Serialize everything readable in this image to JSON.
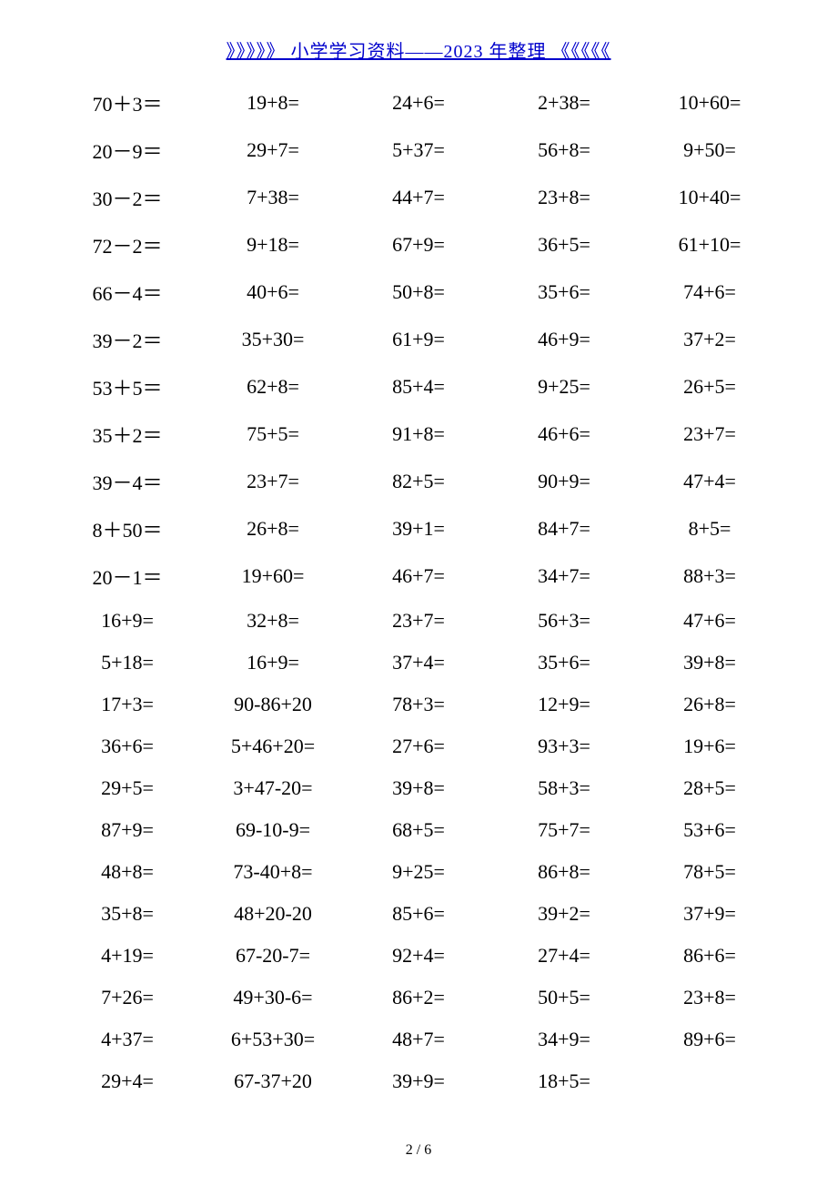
{
  "header": {
    "left_decor": "》》》》》",
    "link_text": "小学学习资料——2023 年整理",
    "right_decor": "《《《《《"
  },
  "table": {
    "columns": 5,
    "rows": [
      [
        "70＋3＝",
        "19+8=",
        "24+6=",
        "2+38=",
        "10+60="
      ],
      [
        "20－9＝",
        "29+7=",
        "5+37=",
        "56+8=",
        "9+50="
      ],
      [
        "30－2＝",
        "7+38=",
        "44+7=",
        "23+8=",
        "10+40="
      ],
      [
        "72－2＝",
        "9+18=",
        "67+9=",
        "36+5=",
        "61+10="
      ],
      [
        "66－4＝",
        "40+6=",
        "50+8=",
        "35+6=",
        "74+6="
      ],
      [
        "39－2＝",
        "35+30=",
        "61+9=",
        "46+9=",
        "37+2="
      ],
      [
        "53＋5＝",
        "62+8=",
        "85+4=",
        "9+25=",
        "26+5="
      ],
      [
        "35＋2＝",
        "75+5=",
        "91+8=",
        "46+6=",
        "23+7="
      ],
      [
        "39－4＝",
        "23+7=",
        "82+5=",
        "90+9=",
        "47+4="
      ],
      [
        "8＋50＝",
        "26+8=",
        "39+1=",
        "84+7=",
        "8+5="
      ],
      [
        "20－1＝",
        "19+60=",
        "46+7=",
        "34+7=",
        "88+3="
      ],
      [
        "16+9=",
        "32+8=",
        "23+7=",
        "56+3=",
        "47+6="
      ],
      [
        "5+18=",
        "16+9=",
        "37+4=",
        "35+6=",
        "39+8="
      ],
      [
        "17+3=",
        "90-86+20",
        "78+3=",
        "12+9=",
        "26+8="
      ],
      [
        "36+6=",
        "5+46+20=",
        "27+6=",
        "93+3=",
        "19+6="
      ],
      [
        "29+5=",
        "3+47-20=",
        "39+8=",
        "58+3=",
        "28+5="
      ],
      [
        "87+9=",
        "69-10-9=",
        "68+5=",
        "75+7=",
        "53+6="
      ],
      [
        "48+8=",
        "73-40+8=",
        "9+25=",
        "86+8=",
        "78+5="
      ],
      [
        "35+8=",
        "48+20-20",
        "85+6=",
        "39+2=",
        "37+9="
      ],
      [
        "4+19=",
        "67-20-7=",
        "92+4=",
        "27+4=",
        "86+6="
      ],
      [
        "7+26=",
        "49+30-6=",
        "86+2=",
        "50+5=",
        "23+8="
      ],
      [
        "4+37=",
        "6+53+30=",
        "48+7=",
        "34+9=",
        "89+6="
      ],
      [
        "29+4=",
        "67-37+20",
        "39+9=",
        "18+5=",
        ""
      ]
    ]
  },
  "pager": {
    "current": "2",
    "sep": " / ",
    "total": "6"
  }
}
